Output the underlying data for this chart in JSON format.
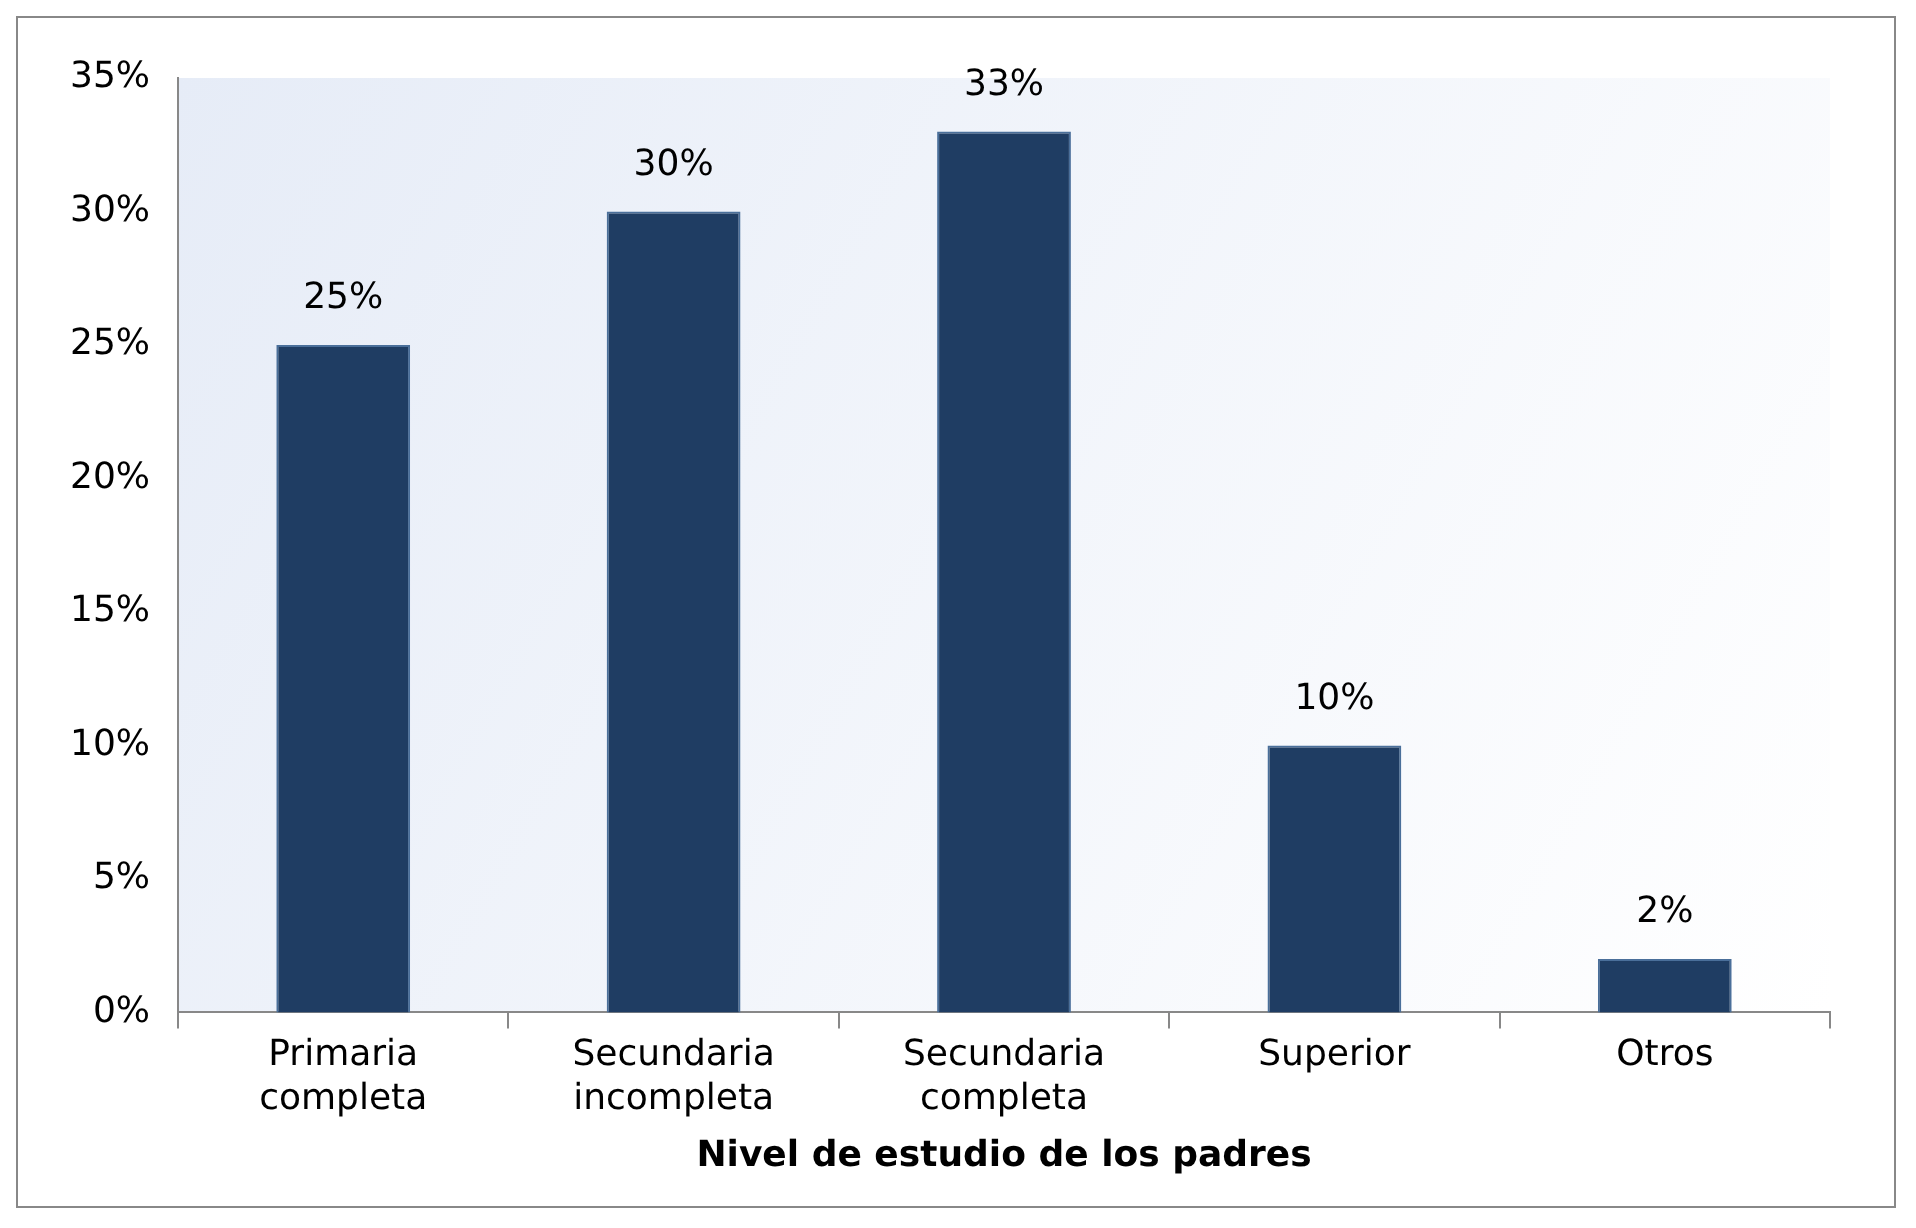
{
  "chart_data": {
    "type": "bar",
    "xlabel": "Nivel de estudio de los padres",
    "categories": [
      "Primaria completa",
      "Secundaria incompleta",
      "Secundaria completa",
      "Superior",
      "Otros"
    ],
    "values": [
      25,
      30,
      33,
      10,
      2
    ],
    "value_labels": [
      "25%",
      "30%",
      "33%",
      "10%",
      "2%"
    ],
    "color": "#1f3d63",
    "ylim": [
      0,
      35
    ],
    "yticks": [
      {
        "value": 0,
        "label": "0%"
      },
      {
        "value": 5,
        "label": "5%"
      },
      {
        "value": 10,
        "label": "10%"
      },
      {
        "value": 15,
        "label": "15%"
      },
      {
        "value": 20,
        "label": "20%"
      },
      {
        "value": 25,
        "label": "25%"
      },
      {
        "value": 30,
        "label": "30%"
      },
      {
        "value": 35,
        "label": "35%"
      }
    ],
    "grid": false,
    "legend": false
  }
}
